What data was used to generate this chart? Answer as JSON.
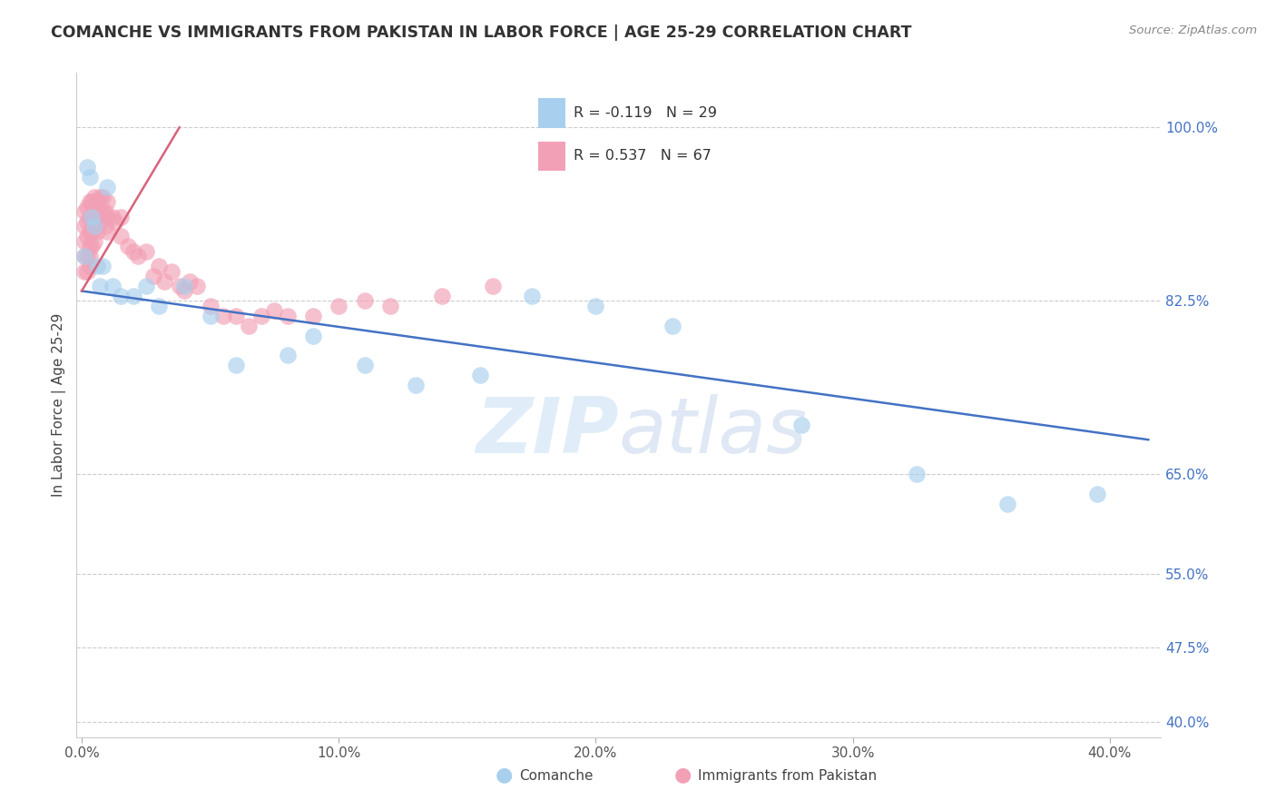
{
  "title": "COMANCHE VS IMMIGRANTS FROM PAKISTAN IN LABOR FORCE | AGE 25-29 CORRELATION CHART",
  "source": "Source: ZipAtlas.com",
  "ylabel": "In Labor Force | Age 25-29",
  "color_blue": "#A8CFEE",
  "color_pink": "#F2A0B5",
  "line_blue": "#4472C4",
  "line_pink": "#D9627A",
  "watermark_zip": "ZIP",
  "watermark_atlas": "atlas",
  "xlim": [
    -0.002,
    0.42
  ],
  "ylim": [
    0.385,
    1.055
  ],
  "x_ticks": [
    0.0,
    0.1,
    0.2,
    0.3,
    0.4
  ],
  "x_labels": [
    "0.0%",
    "10.0%",
    "20.0%",
    "30.0%",
    "40.0%"
  ],
  "y_ticks": [
    0.4,
    0.475,
    0.55,
    0.65,
    0.825,
    1.0
  ],
  "y_labels": [
    "40.0%",
    "47.5%",
    "55.0%",
    "65.0%",
    "82.5%",
    "100.0%"
  ],
  "blue_line_x": [
    0.0,
    0.415
  ],
  "blue_line_y": [
    0.835,
    0.685
  ],
  "pink_line_x": [
    0.0,
    0.038
  ],
  "pink_line_y": [
    0.835,
    1.0
  ],
  "comanche_x": [
    0.001,
    0.002,
    0.003,
    0.004,
    0.005,
    0.006,
    0.007,
    0.008,
    0.01,
    0.012,
    0.015,
    0.02,
    0.025,
    0.03,
    0.04,
    0.05,
    0.06,
    0.08,
    0.09,
    0.11,
    0.13,
    0.155,
    0.175,
    0.2,
    0.23,
    0.28,
    0.325,
    0.36,
    0.395
  ],
  "comanche_y": [
    0.87,
    0.96,
    0.95,
    0.91,
    0.9,
    0.86,
    0.84,
    0.86,
    0.94,
    0.84,
    0.83,
    0.83,
    0.84,
    0.82,
    0.84,
    0.81,
    0.76,
    0.77,
    0.79,
    0.76,
    0.74,
    0.75,
    0.83,
    0.82,
    0.8,
    0.7,
    0.65,
    0.62,
    0.63
  ],
  "pakistan_x": [
    0.001,
    0.001,
    0.001,
    0.001,
    0.001,
    0.002,
    0.002,
    0.002,
    0.002,
    0.002,
    0.003,
    0.003,
    0.003,
    0.003,
    0.003,
    0.003,
    0.004,
    0.004,
    0.004,
    0.004,
    0.005,
    0.005,
    0.005,
    0.005,
    0.006,
    0.006,
    0.006,
    0.007,
    0.007,
    0.007,
    0.008,
    0.008,
    0.009,
    0.009,
    0.01,
    0.01,
    0.01,
    0.012,
    0.013,
    0.015,
    0.015,
    0.018,
    0.02,
    0.022,
    0.025,
    0.028,
    0.03,
    0.032,
    0.035,
    0.038,
    0.04,
    0.042,
    0.045,
    0.05,
    0.055,
    0.06,
    0.065,
    0.07,
    0.075,
    0.08,
    0.09,
    0.1,
    0.11,
    0.12,
    0.14,
    0.16
  ],
  "pakistan_y": [
    0.855,
    0.87,
    0.885,
    0.9,
    0.915,
    0.855,
    0.87,
    0.89,
    0.905,
    0.92,
    0.86,
    0.87,
    0.88,
    0.895,
    0.91,
    0.925,
    0.88,
    0.895,
    0.91,
    0.925,
    0.885,
    0.9,
    0.915,
    0.93,
    0.895,
    0.91,
    0.925,
    0.905,
    0.915,
    0.93,
    0.915,
    0.93,
    0.9,
    0.915,
    0.895,
    0.91,
    0.925,
    0.91,
    0.905,
    0.89,
    0.91,
    0.88,
    0.875,
    0.87,
    0.875,
    0.85,
    0.86,
    0.845,
    0.855,
    0.84,
    0.835,
    0.845,
    0.84,
    0.82,
    0.81,
    0.81,
    0.8,
    0.81,
    0.815,
    0.81,
    0.81,
    0.82,
    0.825,
    0.82,
    0.83,
    0.84
  ]
}
